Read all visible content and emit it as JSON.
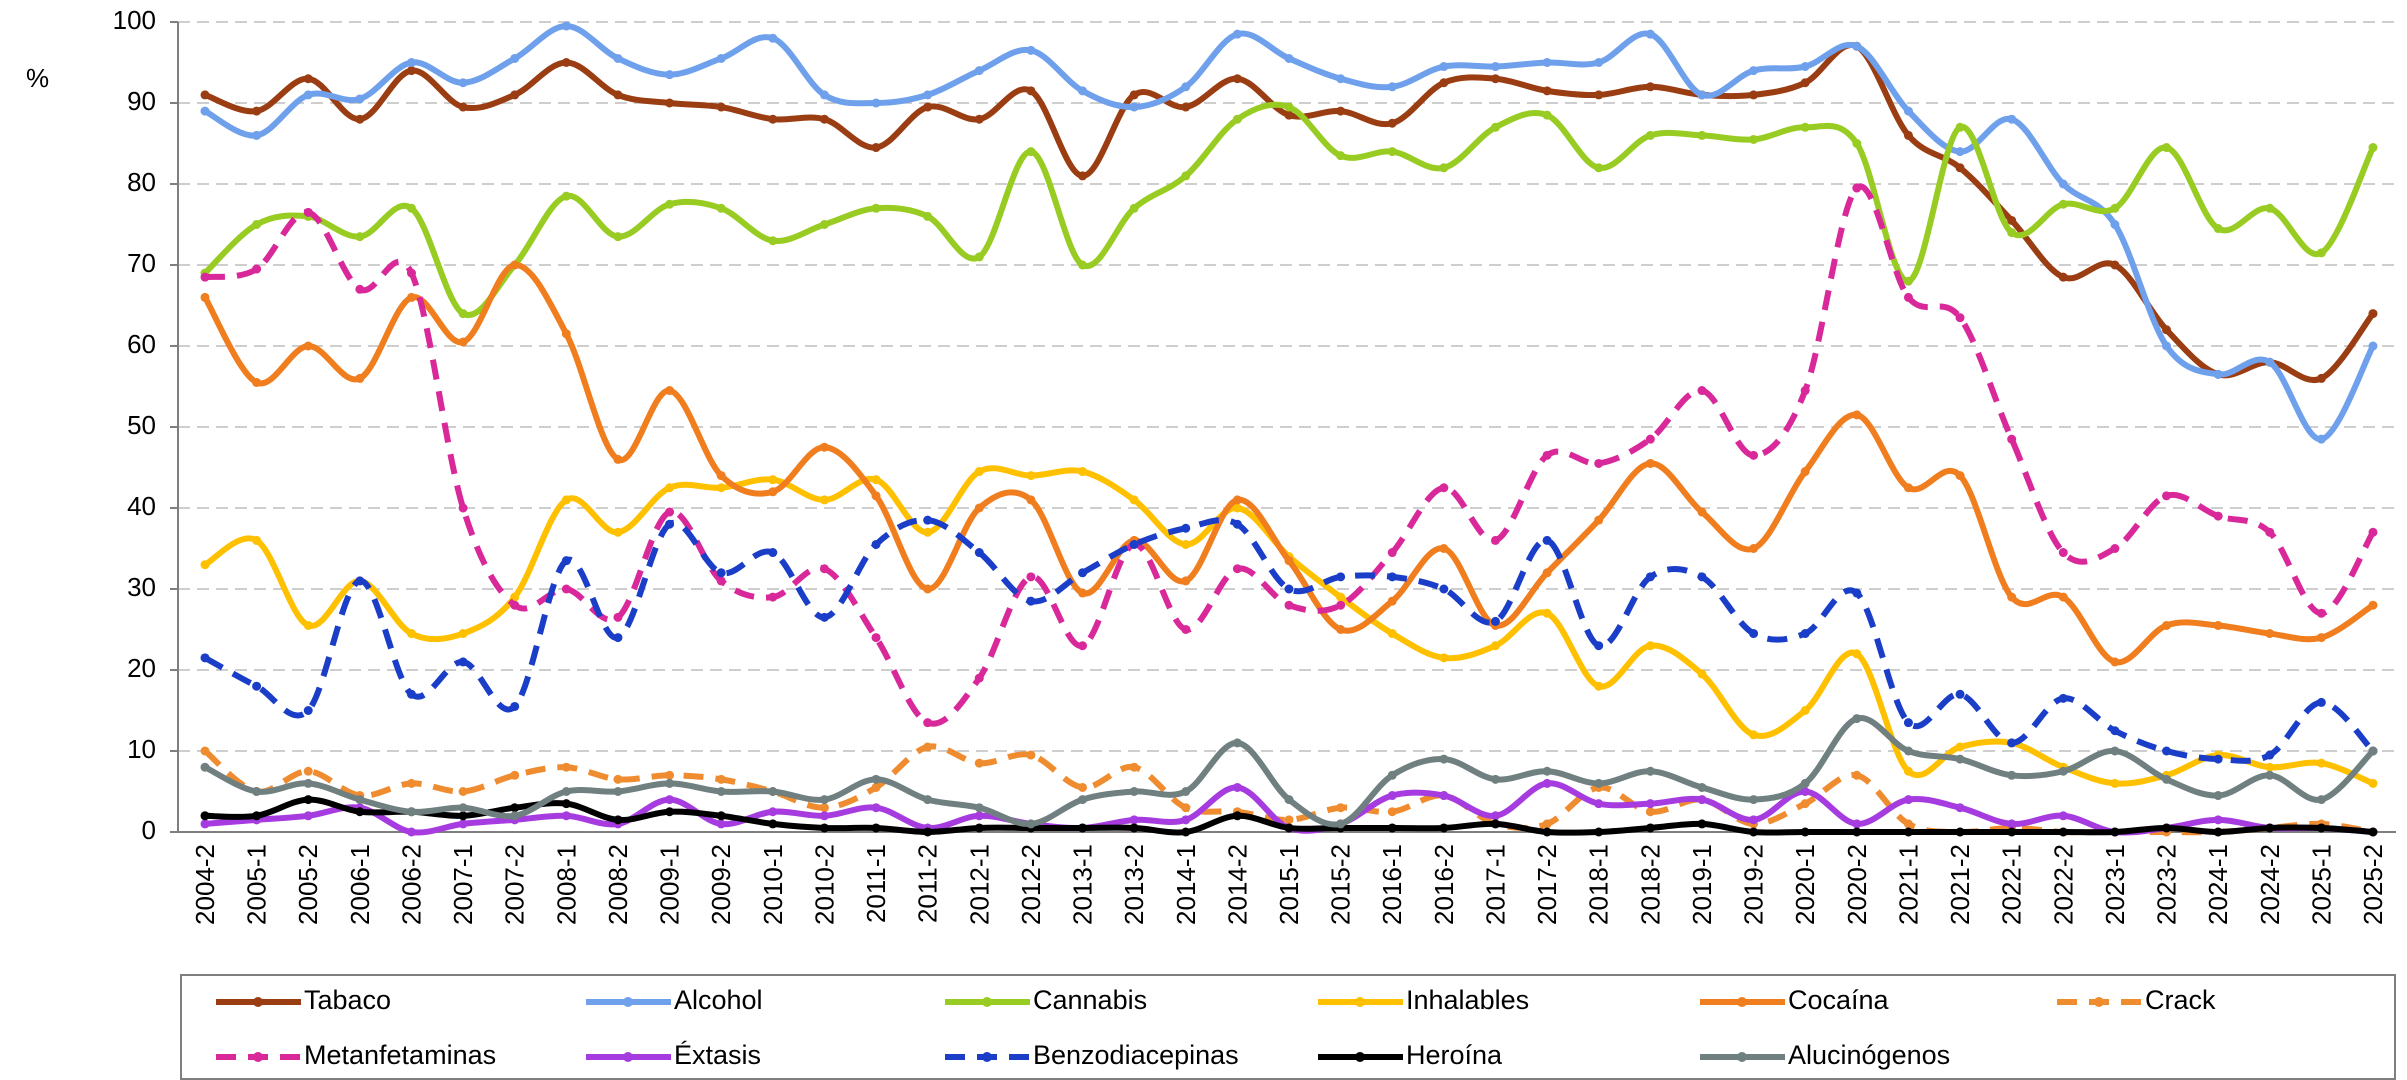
{
  "chart_data": {
    "type": "line",
    "y_label": "%",
    "categories": [
      "2004-2",
      "2005-1",
      "2005-2",
      "2006-1",
      "2006-2",
      "2007-1",
      "2007-2",
      "2008-1",
      "2008-2",
      "2009-1",
      "2009-2",
      "2010-1",
      "2010-2",
      "2011-1",
      "2011-2",
      "2012-1",
      "2012-2",
      "2013-1",
      "2013-2",
      "2014-1",
      "2014-2",
      "2015-1",
      "2015-2",
      "2016-1",
      "2016-2",
      "2017-1",
      "2017-2",
      "2018-1",
      "2018-2",
      "2019-1",
      "2019-2",
      "2020-1",
      "2020-2",
      "2021-1",
      "2021-2",
      "2022-1",
      "2022-2",
      "2023-1",
      "2023-2",
      "2024-1",
      "2024-2",
      "2025-1",
      "2025-2"
    ],
    "ylim": [
      0,
      100
    ],
    "yticks": [
      0,
      10,
      20,
      30,
      40,
      50,
      60,
      70,
      80,
      90,
      100
    ],
    "grid": true,
    "legend": "bottom",
    "series": [
      {
        "name": "Tabaco",
        "color": "#9b3d12",
        "dashed": false,
        "values": [
          91,
          89,
          93,
          88,
          94,
          89.5,
          91,
          95,
          91,
          90,
          89.5,
          88,
          88,
          84.5,
          89.5,
          88,
          91.5,
          81,
          91,
          89.5,
          93,
          88.5,
          89,
          87.5,
          92.5,
          93,
          91.5,
          91,
          92,
          91,
          91,
          92.5,
          97,
          86,
          82,
          75.5,
          68.5,
          70,
          62,
          56.5,
          58,
          56,
          64
        ]
      },
      {
        "name": "Alcohol",
        "color": "#6fa0ec",
        "dashed": false,
        "values": [
          89,
          86,
          91,
          90.5,
          95,
          92.5,
          95.5,
          99.5,
          95.5,
          93.5,
          95.5,
          98,
          91,
          90,
          91,
          94,
          96.5,
          91.5,
          89.5,
          92,
          98.5,
          95.5,
          93,
          92,
          94.5,
          94.5,
          95,
          95,
          98.5,
          91,
          94,
          94.5,
          97,
          89,
          84,
          88,
          80,
          75,
          60,
          56.5,
          58,
          48.5,
          60
        ]
      },
      {
        "name": "Cannabis",
        "color": "#99cc22",
        "dashed": false,
        "values": [
          69,
          75,
          76,
          73.5,
          77,
          64,
          70,
          78.5,
          73.5,
          77.5,
          77,
          73,
          75,
          77,
          76,
          71,
          84,
          70,
          77,
          81,
          88,
          89.5,
          83.5,
          84,
          82,
          87,
          88.5,
          82,
          86,
          86,
          85.5,
          87,
          85,
          68,
          87,
          74,
          77.5,
          77,
          84.5,
          74.5,
          77,
          71.5,
          84.5
        ]
      },
      {
        "name": "Inhalables",
        "color": "#ffc000",
        "dashed": false,
        "values": [
          33,
          36,
          25.5,
          31,
          24.5,
          24.5,
          29,
          41,
          37,
          42.5,
          42.5,
          43.5,
          41,
          43.5,
          37,
          44.5,
          44,
          44.5,
          41,
          35.5,
          40,
          34,
          29,
          24.5,
          21.5,
          23,
          27,
          18,
          23,
          19.5,
          12,
          15,
          22,
          7.5,
          10.5,
          11,
          8,
          6,
          7,
          9.5,
          8,
          8.5,
          6
        ]
      },
      {
        "name": "Cocaína",
        "color": "#f07d1e",
        "dashed": false,
        "values": [
          66,
          55.5,
          60,
          56,
          66,
          60.5,
          70,
          61.5,
          46,
          54.5,
          44,
          42,
          47.5,
          41.5,
          30,
          40,
          41,
          29.5,
          36,
          31,
          41,
          33.5,
          25,
          28.5,
          35,
          25.5,
          32,
          38.5,
          45.5,
          39.5,
          35,
          44.5,
          51.5,
          42.5,
          44,
          29,
          29,
          21,
          25.5,
          25.5,
          24.5,
          24,
          28
        ]
      },
      {
        "name": "Crack",
        "color": "#f08c30",
        "dashed": true,
        "values": [
          10,
          5,
          7.5,
          4.5,
          6,
          5,
          7,
          8,
          6.5,
          7,
          6.5,
          5,
          3,
          5.5,
          10.5,
          8.5,
          9.5,
          5.5,
          8,
          3,
          2.5,
          1.5,
          3,
          2.5,
          4.5,
          1,
          1,
          5.5,
          2.5,
          4,
          1,
          3.5,
          7,
          1,
          0,
          0.5,
          0,
          0,
          0,
          0,
          0.5,
          1,
          0
        ]
      },
      {
        "name": "Metanfetaminas",
        "color": "#d9289a",
        "dashed": true,
        "values": [
          68.5,
          69.5,
          76.5,
          67,
          69,
          40,
          28,
          30,
          26.5,
          39.5,
          31,
          29,
          32.5,
          24,
          13.5,
          19,
          31.5,
          23,
          35.5,
          25,
          32.5,
          28,
          28,
          34.5,
          42.5,
          36,
          46.5,
          45.5,
          48.5,
          54.5,
          46.5,
          54.5,
          79.5,
          66,
          63.5,
          48.5,
          34.5,
          35,
          41.5,
          39,
          37,
          27,
          37
        ]
      },
      {
        "name": "Éxtasis",
        "color": "#a63ce0",
        "dashed": false,
        "values": [
          1,
          1.5,
          2,
          3,
          0,
          1,
          1.5,
          2,
          1,
          4,
          1,
          2.5,
          2,
          3,
          0.5,
          2,
          1,
          0.5,
          1.5,
          1.5,
          5.5,
          0.5,
          1,
          4.5,
          4.5,
          2,
          6,
          3.5,
          3.5,
          4,
          1.5,
          5,
          1,
          4,
          3,
          1,
          2,
          0,
          0.5,
          1.5,
          0.5,
          0.5,
          0
        ]
      },
      {
        "name": "Benzodiacepinas",
        "color": "#1a3ec8",
        "dashed": true,
        "values": [
          21.5,
          18,
          15,
          31,
          17,
          21,
          15.5,
          33.5,
          24,
          38,
          32,
          34.5,
          26.5,
          35.5,
          38.5,
          34.5,
          28.5,
          32,
          35.5,
          37.5,
          38,
          30,
          31.5,
          31.5,
          30,
          26,
          36,
          23,
          31.5,
          31.5,
          24.5,
          24.5,
          29.5,
          13.5,
          17,
          11,
          16.5,
          12.5,
          10,
          9,
          9.5,
          16,
          10
        ]
      },
      {
        "name": "Heroína",
        "color": "#000000",
        "dashed": false,
        "values": [
          2,
          2,
          4,
          2.5,
          2.5,
          2,
          3,
          3.5,
          1.5,
          2.5,
          2,
          1,
          0.5,
          0.5,
          0,
          0.5,
          0.5,
          0.5,
          0.5,
          0,
          2,
          0.5,
          0.5,
          0.5,
          0.5,
          1,
          0,
          0,
          0.5,
          1,
          0,
          0,
          0,
          0,
          0,
          0,
          0,
          0,
          0.5,
          0,
          0.5,
          0.5,
          0
        ]
      },
      {
        "name": "Alucinógenos",
        "color": "#708080",
        "dashed": false,
        "values": [
          8,
          5,
          6,
          4,
          2.5,
          3,
          2,
          5,
          5,
          6,
          5,
          5,
          4,
          6.5,
          4,
          3,
          1,
          4,
          5,
          5,
          11,
          4,
          1,
          7,
          9,
          6.5,
          7.5,
          6,
          7.5,
          5.5,
          4,
          6,
          14,
          10,
          9,
          7,
          7.5,
          10,
          6.5,
          4.5,
          7,
          4,
          10
        ]
      }
    ]
  }
}
